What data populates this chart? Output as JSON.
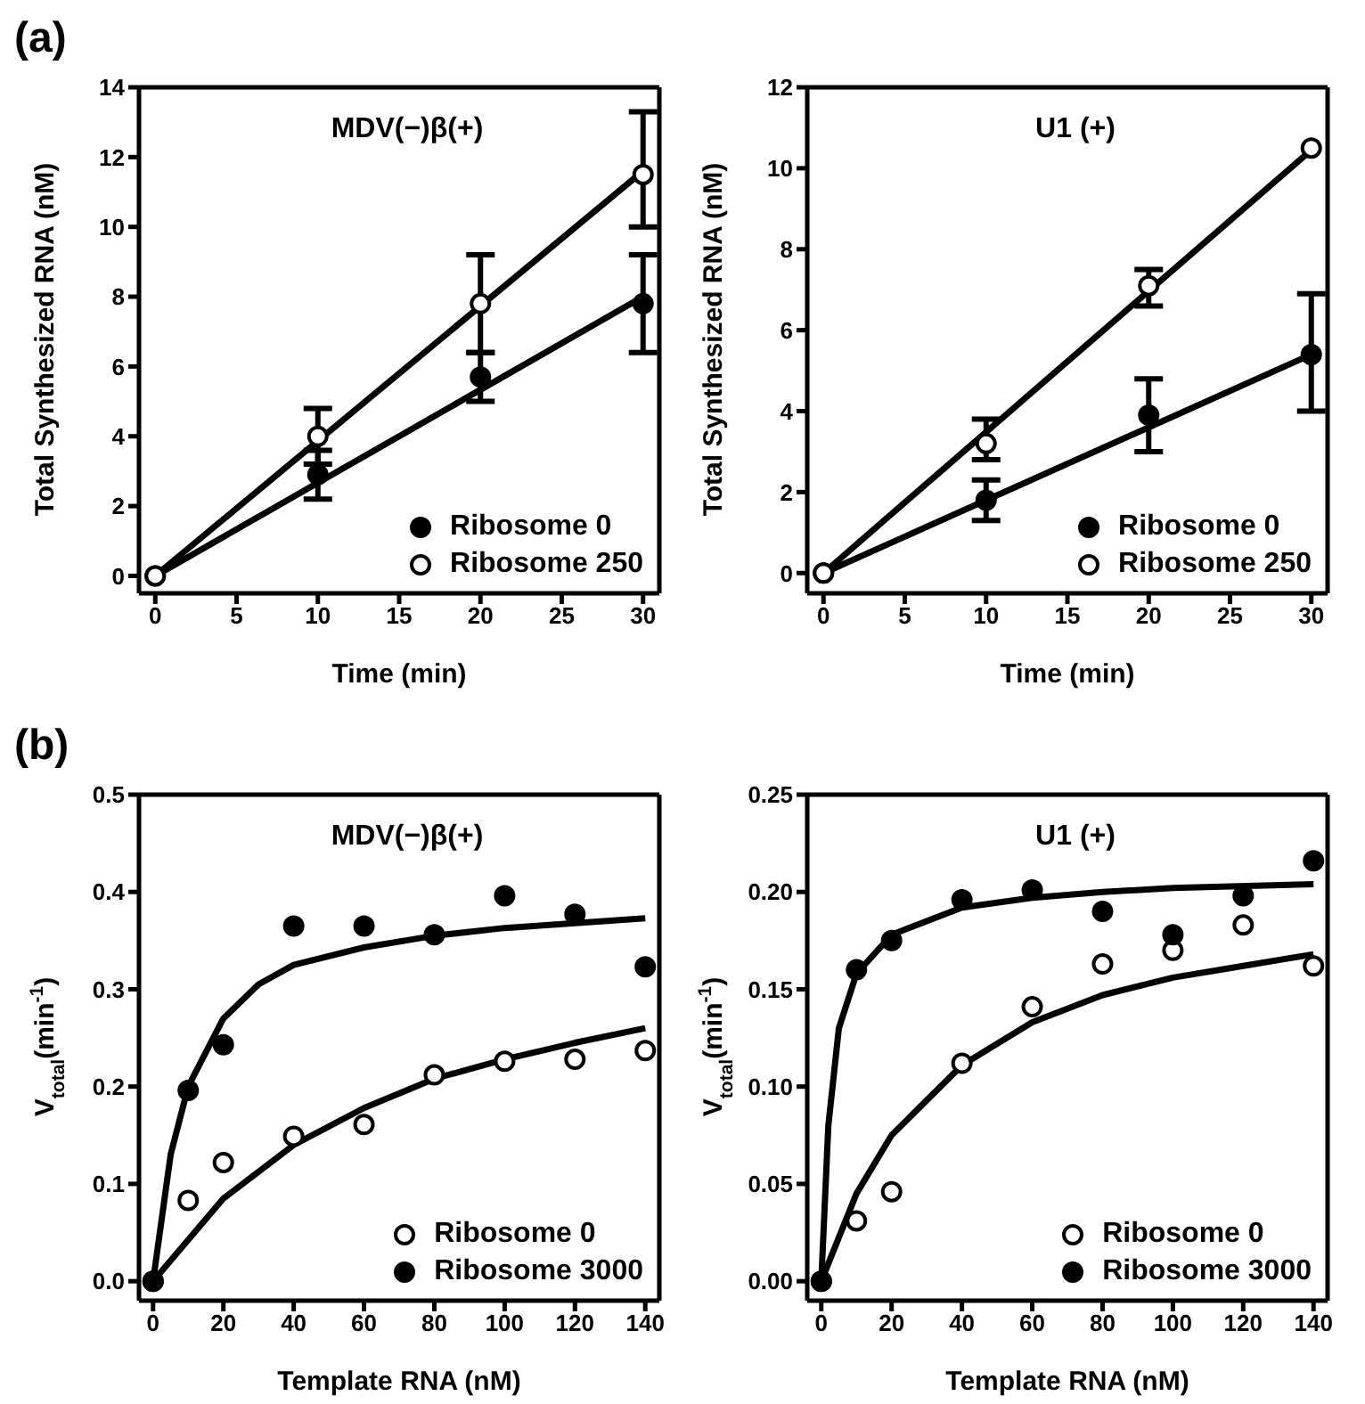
{
  "chart_data": [
    {
      "type": "scatter",
      "annotations": [
        "(a)"
      ],
      "title": "MDV(−)β(+)",
      "xlabel": "Time (min)",
      "ylabel": "Total Synthesized RNA (nM)",
      "xlim": [
        -1,
        31
      ],
      "xticks": [
        0,
        5,
        10,
        15,
        20,
        25,
        30
      ],
      "ylim": [
        -0.5,
        14
      ],
      "yticks": [
        0,
        2,
        4,
        6,
        8,
        10,
        12,
        14
      ],
      "legend": "bottom right",
      "marker": "circle",
      "x": [
        0,
        10,
        20,
        30
      ],
      "series": [
        {
          "name": "Ribosome 0",
          "color": "#000000",
          "values": [
            0,
            2.9,
            5.7,
            7.8
          ],
          "errors": [
            null,
            [
              2.2,
              3.6
            ],
            [
              5.0,
              6.4
            ],
            [
              6.4,
              9.2
            ]
          ]
        },
        {
          "name": "Ribosome 250",
          "color": "#ffffff",
          "values": [
            0,
            4.0,
            7.8,
            11.5
          ],
          "errors": [
            null,
            [
              3.2,
              4.8
            ],
            [
              6.4,
              9.2
            ],
            [
              10.0,
              13.3
            ]
          ]
        },
        {
          "type": "line",
          "marker": "none",
          "color": "#000000",
          "x": [
            0,
            30
          ],
          "values": [
            0,
            8.0
          ]
        },
        {
          "type": "line",
          "marker": "none",
          "color": "#000000",
          "x": [
            0,
            30
          ],
          "values": [
            0,
            11.6
          ]
        }
      ]
    },
    {
      "type": "scatter",
      "title": "U1 (+)",
      "xlabel": "Time (min)",
      "ylabel": "Total Synthesized RNA (nM)",
      "xlim": [
        -1,
        31
      ],
      "xticks": [
        0,
        5,
        10,
        15,
        20,
        25,
        30
      ],
      "ylim": [
        -0.5,
        12
      ],
      "yticks": [
        0,
        2,
        4,
        6,
        8,
        10,
        12
      ],
      "legend": "bottom right",
      "marker": "circle",
      "x": [
        0,
        10,
        20,
        30
      ],
      "series": [
        {
          "name": "Ribosome 0",
          "color": "#000000",
          "values": [
            0,
            1.8,
            3.9,
            5.4
          ],
          "errors": [
            null,
            [
              1.3,
              2.3
            ],
            [
              3.0,
              4.8
            ],
            [
              4.0,
              6.9
            ]
          ]
        },
        {
          "name": "Ribosome 250",
          "color": "#ffffff",
          "values": [
            0,
            3.2,
            7.1,
            10.5
          ],
          "errors": [
            null,
            [
              2.8,
              3.8
            ],
            [
              6.6,
              7.5
            ],
            null
          ]
        },
        {
          "type": "line",
          "marker": "none",
          "color": "#000000",
          "x": [
            0,
            30
          ],
          "values": [
            0,
            5.4
          ]
        },
        {
          "type": "line",
          "marker": "none",
          "color": "#000000",
          "x": [
            0,
            30
          ],
          "values": [
            0,
            10.45
          ]
        }
      ]
    },
    {
      "type": "scatter",
      "annotations": [
        "(b)"
      ],
      "title": "MDV(−)β(+)",
      "xlabel": "Template RNA (nM)",
      "ylabel": "V$_{total}$(min$^{-1}$)",
      "xlim": [
        -4,
        144
      ],
      "xticks": [
        0,
        20,
        40,
        60,
        80,
        100,
        120,
        140
      ],
      "ylim": [
        -0.02,
        0.5
      ],
      "yticks": [
        {
          "value": 0,
          "label": "0.0"
        },
        0.1,
        0.2,
        0.3,
        0.4,
        0.5
      ],
      "legend": "bottom right",
      "marker": "circle",
      "x": [
        0,
        10,
        20,
        40,
        60,
        80,
        100,
        120,
        140
      ],
      "series": [
        {
          "name": "Ribosome 0",
          "color": "#ffffff",
          "values": [
            0,
            0.083,
            0.122,
            0.149,
            0.161,
            0.212,
            0.226,
            0.228,
            0.237
          ]
        },
        {
          "name": "Ribosome 3000",
          "color": "#000000",
          "values": [
            0,
            0.196,
            0.243,
            0.365,
            0.365,
            0.356,
            0.396,
            0.377,
            0.323
          ]
        },
        {
          "type": "line",
          "marker": "none",
          "color": "#000000",
          "x": [
            0,
            20,
            40,
            60,
            80,
            100,
            120,
            140
          ],
          "values": [
            0,
            0.085,
            0.14,
            0.178,
            0.208,
            0.228,
            0.245,
            0.26
          ]
        },
        {
          "type": "line",
          "marker": "none",
          "color": "#000000",
          "x": [
            0,
            5,
            10,
            20,
            30,
            40,
            60,
            80,
            100,
            120,
            140
          ],
          "values": [
            0,
            0.13,
            0.2,
            0.27,
            0.305,
            0.325,
            0.343,
            0.355,
            0.363,
            0.368,
            0.373
          ]
        }
      ]
    },
    {
      "type": "scatter",
      "title": "U1 (+)",
      "xlabel": "Template RNA (nM)",
      "ylabel": "V$_{total}$(min$^{-1}$)",
      "xlim": [
        -4,
        144
      ],
      "xticks": [
        0,
        20,
        40,
        60,
        80,
        100,
        120,
        140
      ],
      "ylim": [
        -0.01,
        0.25
      ],
      "yticks": [
        {
          "value": 0,
          "label": "0.00"
        },
        0.05,
        {
          "value": 0.1,
          "label": "0.10"
        },
        0.15,
        {
          "value": 0.2,
          "label": "0.20"
        },
        0.25
      ],
      "legend": "bottom right",
      "marker": "circle",
      "x": [
        0,
        10,
        20,
        40,
        60,
        80,
        100,
        120,
        140
      ],
      "series": [
        {
          "name": "Ribosome 0",
          "color": "#ffffff",
          "values": [
            0,
            0.031,
            0.046,
            0.112,
            0.141,
            0.163,
            0.17,
            0.183,
            0.162
          ]
        },
        {
          "name": "Ribosome 3000",
          "color": "#000000",
          "values": [
            0,
            0.16,
            0.175,
            0.196,
            0.201,
            0.19,
            0.178,
            0.198,
            0.216
          ]
        },
        {
          "type": "line",
          "marker": "none",
          "color": "#000000",
          "x": [
            0,
            10,
            20,
            40,
            60,
            80,
            100,
            120,
            140
          ],
          "values": [
            0,
            0.045,
            0.075,
            0.111,
            0.133,
            0.147,
            0.156,
            0.162,
            0.168
          ]
        },
        {
          "type": "line",
          "marker": "none",
          "color": "#000000",
          "x": [
            0,
            2,
            5,
            10,
            20,
            40,
            60,
            80,
            100,
            140
          ],
          "values": [
            0,
            0.08,
            0.13,
            0.158,
            0.178,
            0.192,
            0.197,
            0.2,
            0.202,
            0.204
          ]
        }
      ]
    }
  ]
}
